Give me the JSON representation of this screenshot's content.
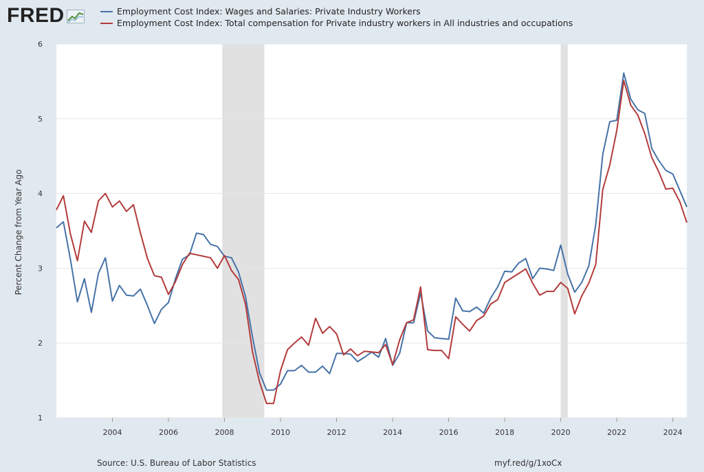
{
  "logo": {
    "text": "FRED"
  },
  "chart_data": {
    "type": "line",
    "ylabel": "Percent Change from Year Ago",
    "ylim": [
      1,
      6
    ],
    "yticks": [
      1,
      2,
      3,
      4,
      5,
      6
    ],
    "xlim": [
      2002.0,
      2024.5
    ],
    "xticks": [
      2004,
      2006,
      2008,
      2010,
      2012,
      2014,
      2016,
      2018,
      2020,
      2022,
      2024
    ],
    "grid": true,
    "recessions": [
      [
        2007.92,
        2009.42
      ],
      [
        2020.0,
        2020.25
      ]
    ],
    "series": [
      {
        "name": "Employment Cost Index: Wages and Salaries: Private Industry Workers",
        "color": "#4572a7",
        "start": 2002.0,
        "step": 0.25,
        "values": [
          3.54,
          3.62,
          3.12,
          2.55,
          2.86,
          2.41,
          2.93,
          3.14,
          2.56,
          2.77,
          2.64,
          2.63,
          2.72,
          2.5,
          2.26,
          2.45,
          2.54,
          2.86,
          3.12,
          3.18,
          3.47,
          3.45,
          3.32,
          3.29,
          3.16,
          3.14,
          2.95,
          2.62,
          2.08,
          1.6,
          1.37,
          1.37,
          1.45,
          1.63,
          1.63,
          1.7,
          1.61,
          1.61,
          1.69,
          1.59,
          1.86,
          1.86,
          1.85,
          1.75,
          1.81,
          1.88,
          1.81,
          2.06,
          1.7,
          1.86,
          2.27,
          2.27,
          2.67,
          2.16,
          2.07,
          2.06,
          2.05,
          2.6,
          2.43,
          2.42,
          2.48,
          2.4,
          2.6,
          2.75,
          2.96,
          2.95,
          3.07,
          3.13,
          2.86,
          3.0,
          2.99,
          2.97,
          3.31,
          2.92,
          2.68,
          2.81,
          3.03,
          3.58,
          4.52,
          4.96,
          4.98,
          5.61,
          5.26,
          5.12,
          5.07,
          4.6,
          4.44,
          4.31,
          4.26,
          4.04,
          3.82
        ]
      },
      {
        "name": "Employment Cost Index: Total compensation for Private industry workers in All industries and occupations",
        "color": "#b33a3a",
        "start": 2002.0,
        "step": 0.25,
        "values": [
          3.78,
          3.97,
          3.46,
          3.1,
          3.63,
          3.48,
          3.9,
          4.0,
          3.82,
          3.9,
          3.76,
          3.85,
          3.47,
          3.13,
          2.9,
          2.88,
          2.65,
          2.82,
          3.05,
          3.2,
          3.18,
          3.16,
          3.14,
          3.0,
          3.17,
          2.97,
          2.85,
          2.52,
          1.88,
          1.48,
          1.19,
          1.19,
          1.63,
          1.91,
          2.0,
          2.08,
          1.97,
          2.33,
          2.13,
          2.22,
          2.12,
          1.84,
          1.92,
          1.83,
          1.89,
          1.88,
          1.87,
          1.98,
          1.71,
          2.04,
          2.27,
          2.31,
          2.75,
          1.91,
          1.9,
          1.9,
          1.79,
          2.35,
          2.25,
          2.16,
          2.3,
          2.36,
          2.52,
          2.58,
          2.81,
          2.87,
          2.93,
          2.99,
          2.8,
          2.64,
          2.69,
          2.69,
          2.81,
          2.73,
          2.39,
          2.63,
          2.8,
          3.05,
          4.05,
          4.38,
          4.84,
          5.51,
          5.18,
          5.05,
          4.8,
          4.48,
          4.29,
          4.06,
          4.07,
          3.89,
          3.61
        ]
      }
    ]
  },
  "footer": {
    "source": "Source: U.S. Bureau of Labor Statistics",
    "url": "myf.red/g/1xoCx"
  }
}
